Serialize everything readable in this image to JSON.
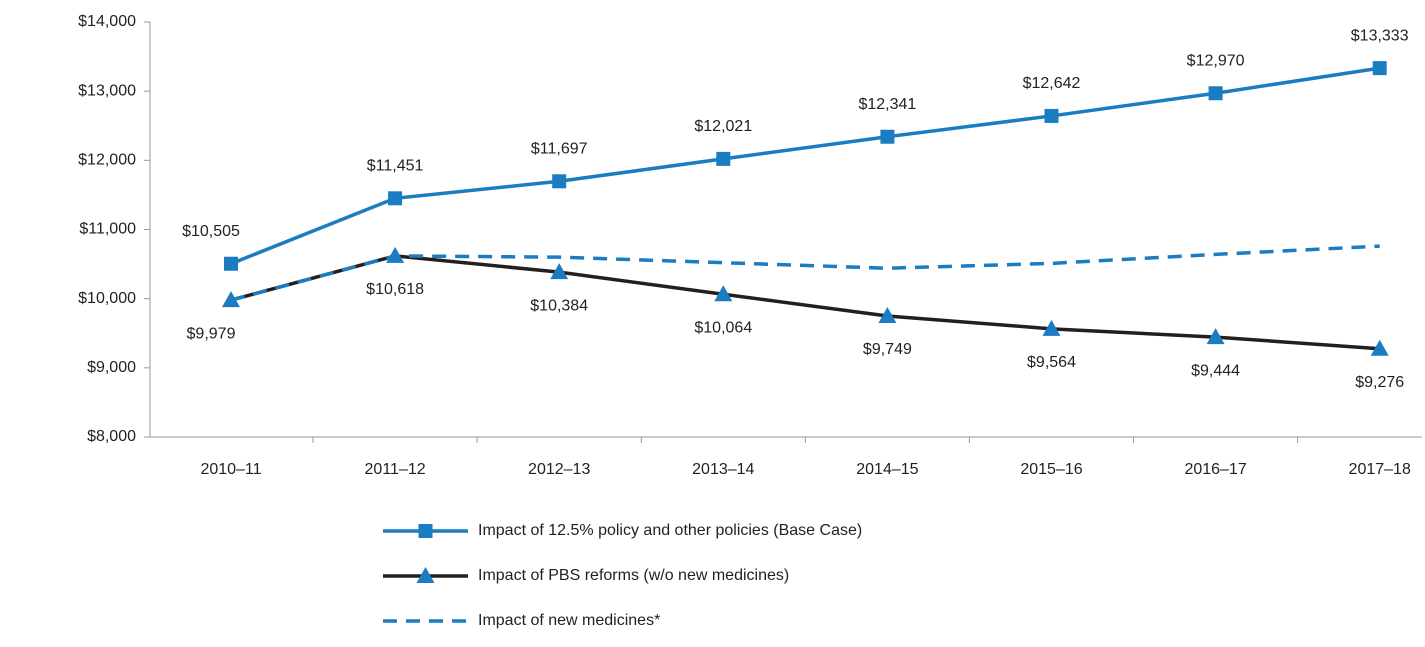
{
  "chart_data": {
    "type": "line",
    "categories": [
      "2010–11",
      "2011–12",
      "2012–13",
      "2013–14",
      "2014–15",
      "2015–16",
      "2016–17",
      "2017–18"
    ],
    "series": [
      {
        "name": "Impact of 12.5% policy and other policies (Base Case)",
        "color": "#1a7cc1",
        "marker": "square",
        "marker_color": "#1a7cc1",
        "label_side": "above",
        "values": [
          10505,
          11451,
          11697,
          12021,
          12341,
          12642,
          12970,
          13333
        ],
        "value_labels": [
          "$10,505",
          "$11,451",
          "$11,697",
          "$12,021",
          "$12,341",
          "$12,642",
          "$12,970",
          "$13,333"
        ]
      },
      {
        "name": "Impact of PBS reforms  (w/o new medicines)",
        "color": "#231f20",
        "marker": "triangle",
        "marker_color": "#1a7cc1",
        "label_side": "below",
        "values": [
          9979,
          10618,
          10384,
          10064,
          9749,
          9564,
          9444,
          9276
        ],
        "value_labels": [
          "$9,979",
          "$10,618",
          "$10,384",
          "$10,064",
          "$9,749",
          "$9,564",
          "$9,444",
          "$9,276"
        ]
      },
      {
        "name": "Impact of new medicines*",
        "color": "#1a7cc1",
        "dashed": true,
        "values": [
          9979,
          10618,
          10600,
          10520,
          10440,
          10510,
          10640,
          10760
        ]
      }
    ],
    "ylim": [
      8000,
      14000
    ],
    "yticks": [
      {
        "value": 8000,
        "label": "$8,000"
      },
      {
        "value": 9000,
        "label": "$9,000"
      },
      {
        "value": 10000,
        "label": "$10,000"
      },
      {
        "value": 11000,
        "label": "$11,000"
      },
      {
        "value": 12000,
        "label": "$12,000"
      },
      {
        "value": 13000,
        "label": "$13,000"
      },
      {
        "value": 14000,
        "label": "$14,000"
      }
    ],
    "legend": "bottom",
    "grid": false
  }
}
